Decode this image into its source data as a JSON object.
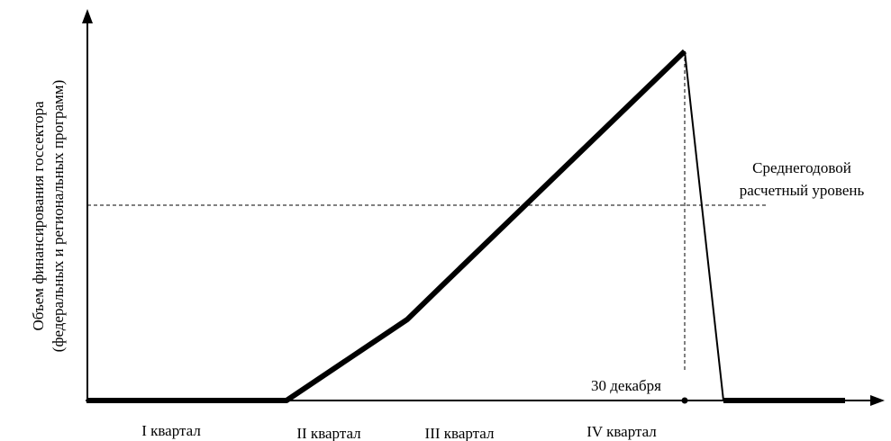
{
  "y_axis_label": [
    "Объем финансирования госсектора",
    "(федеральных и региональных программ)"
  ],
  "annotation": [
    "Среднегодовой",
    "расчетный уровень"
  ],
  "date_label": "30 декабря",
  "quarters": [
    "I квартал",
    "II квартал",
    "III квартал",
    "IV квартал"
  ]
}
